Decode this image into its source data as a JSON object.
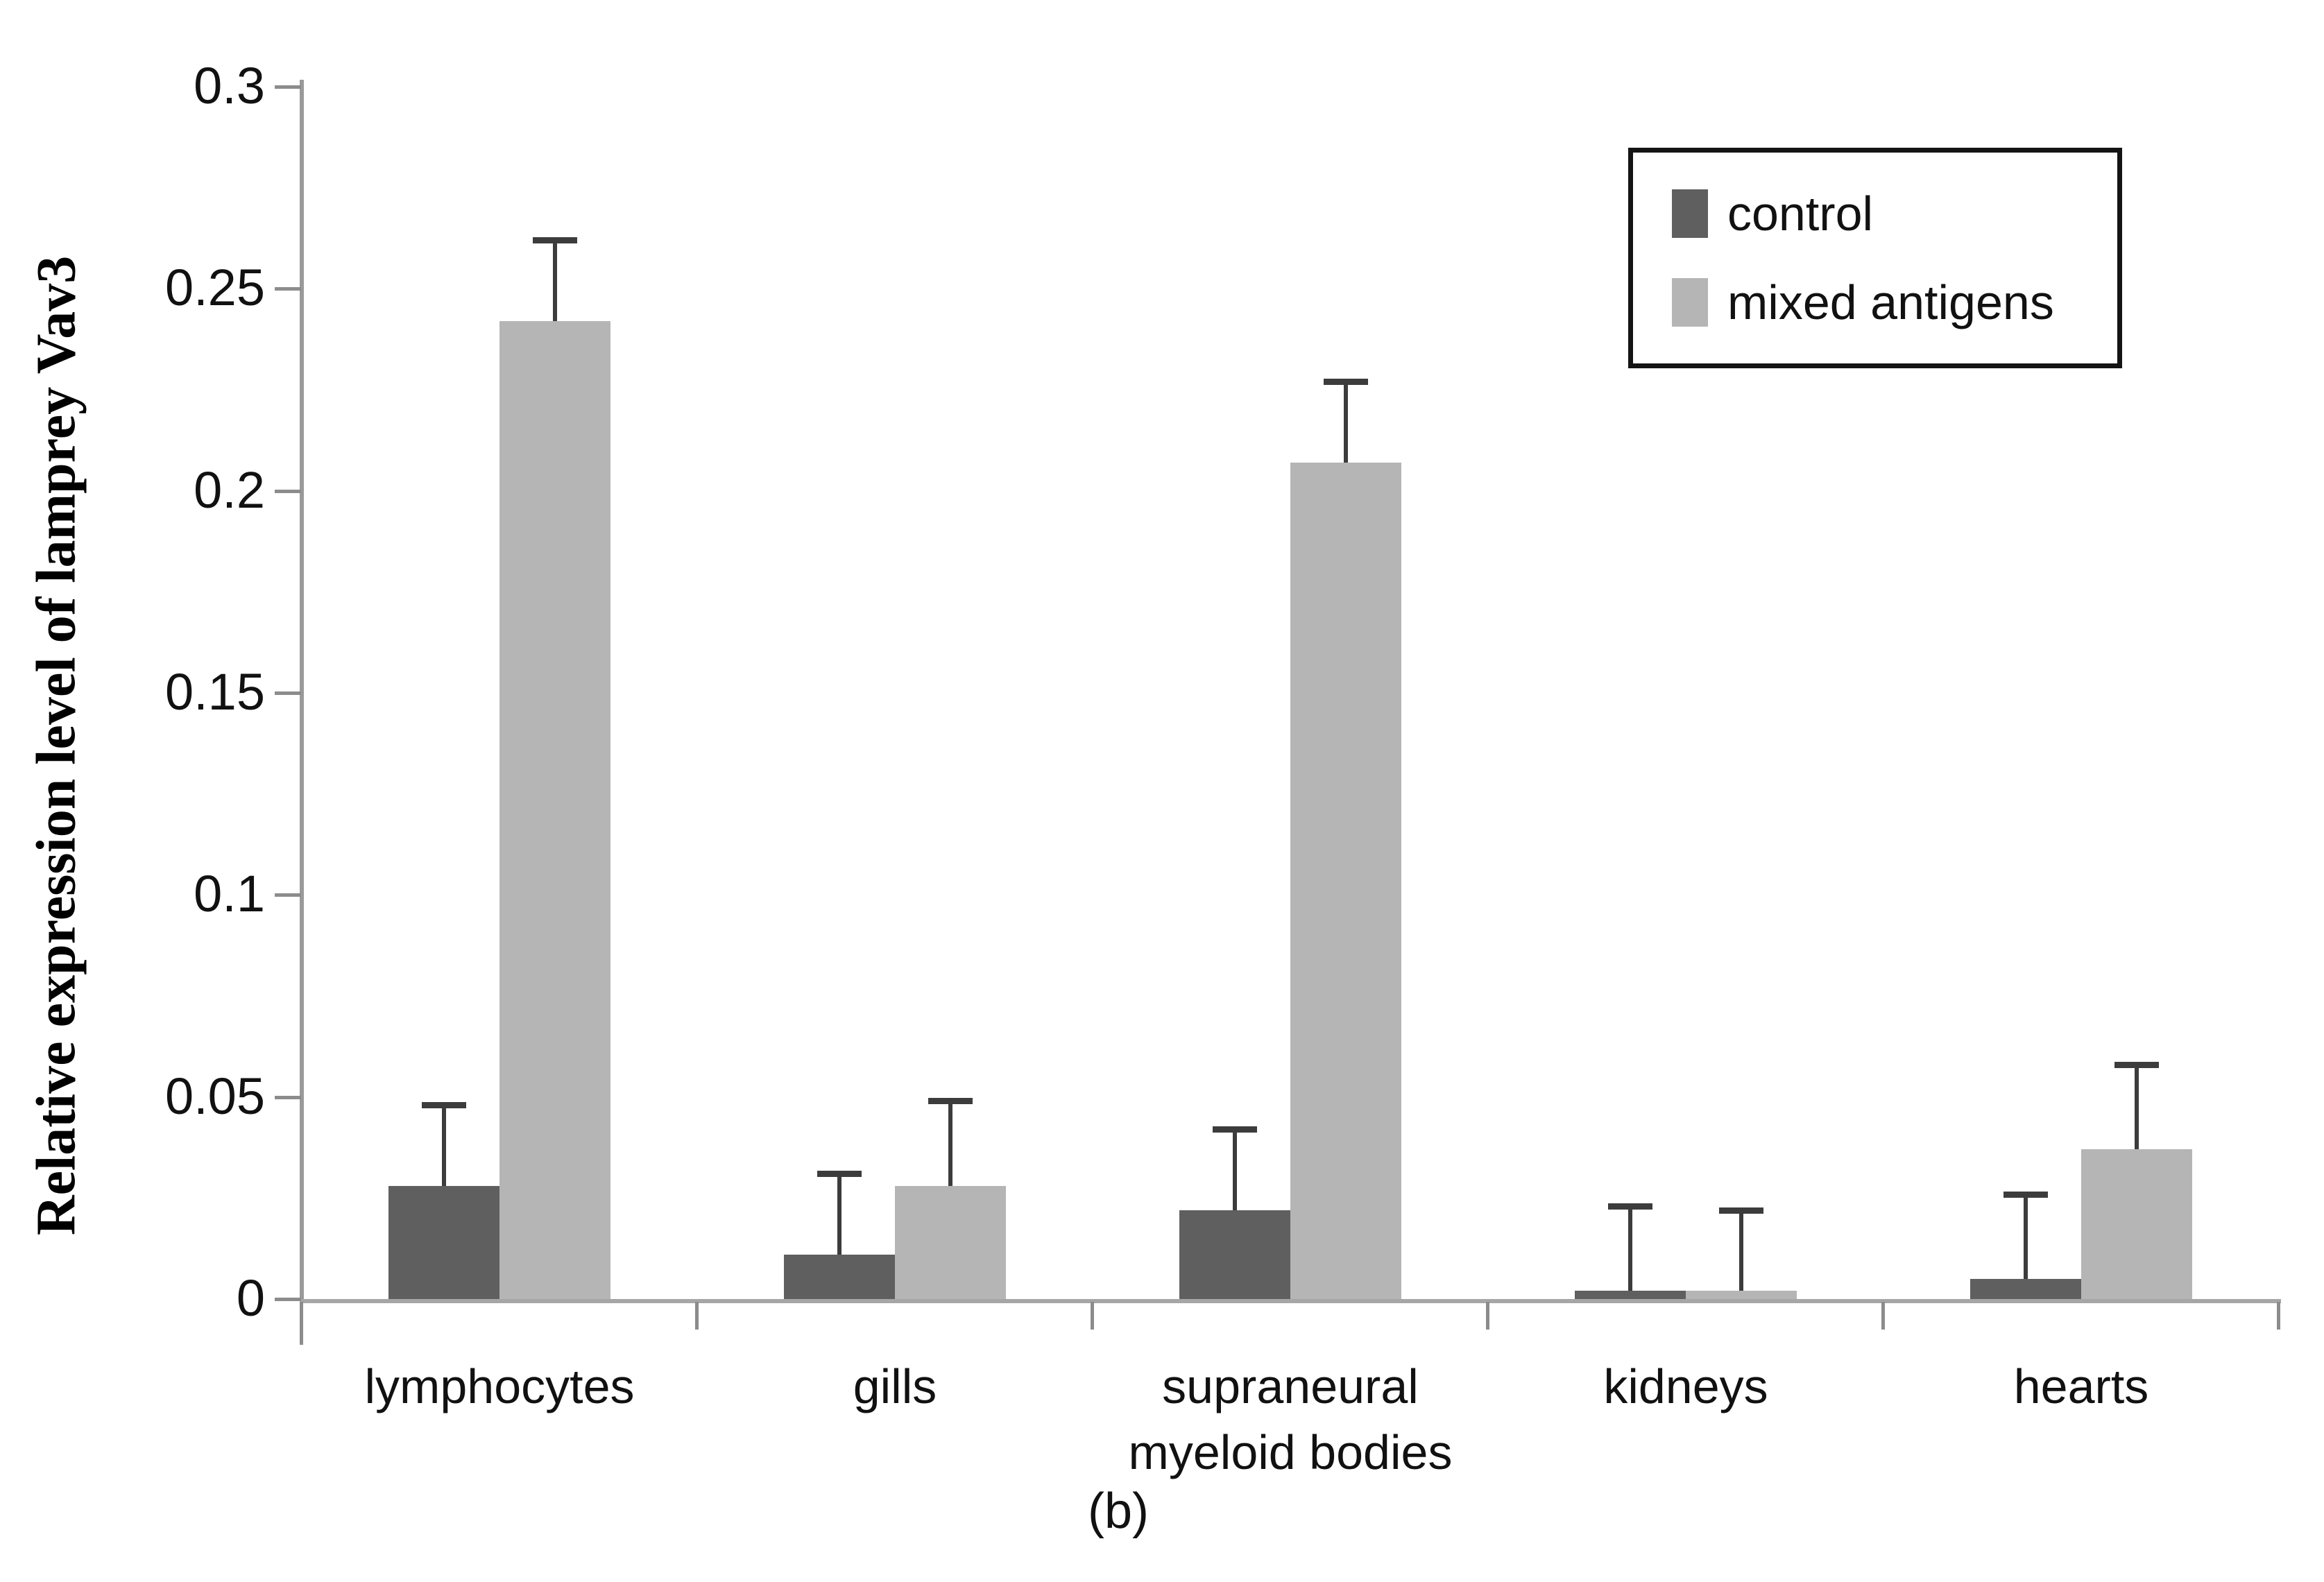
{
  "figure": {
    "caption": "(b)"
  },
  "chart_data": {
    "type": "bar",
    "title": "",
    "xlabel": "",
    "ylabel": "Relative expression level of lamprey Vav3",
    "categories": [
      "lymphocytes",
      "gills",
      "supraneural myeloid bodies",
      "kidneys",
      "hearts"
    ],
    "series": [
      {
        "name": "control",
        "color": "#5f5f5f",
        "values": [
          0.028,
          0.011,
          0.022,
          0.002,
          0.005
        ],
        "error_plus": [
          0.02,
          0.02,
          0.02,
          0.021,
          0.021
        ]
      },
      {
        "name": "mixed antigens",
        "color": "#b5b5b5",
        "values": [
          0.242,
          0.028,
          0.207,
          0.002,
          0.037
        ],
        "error_plus": [
          0.02,
          0.021,
          0.02,
          0.02,
          0.021
        ]
      }
    ],
    "ylim": [
      0,
      0.3
    ],
    "yticks": [
      "0",
      "0.05",
      "0.1",
      "0.15",
      "0.2",
      "0.25",
      "0.3"
    ],
    "grid": false,
    "legend_position": "top-right",
    "error_bars": "plus-only"
  }
}
